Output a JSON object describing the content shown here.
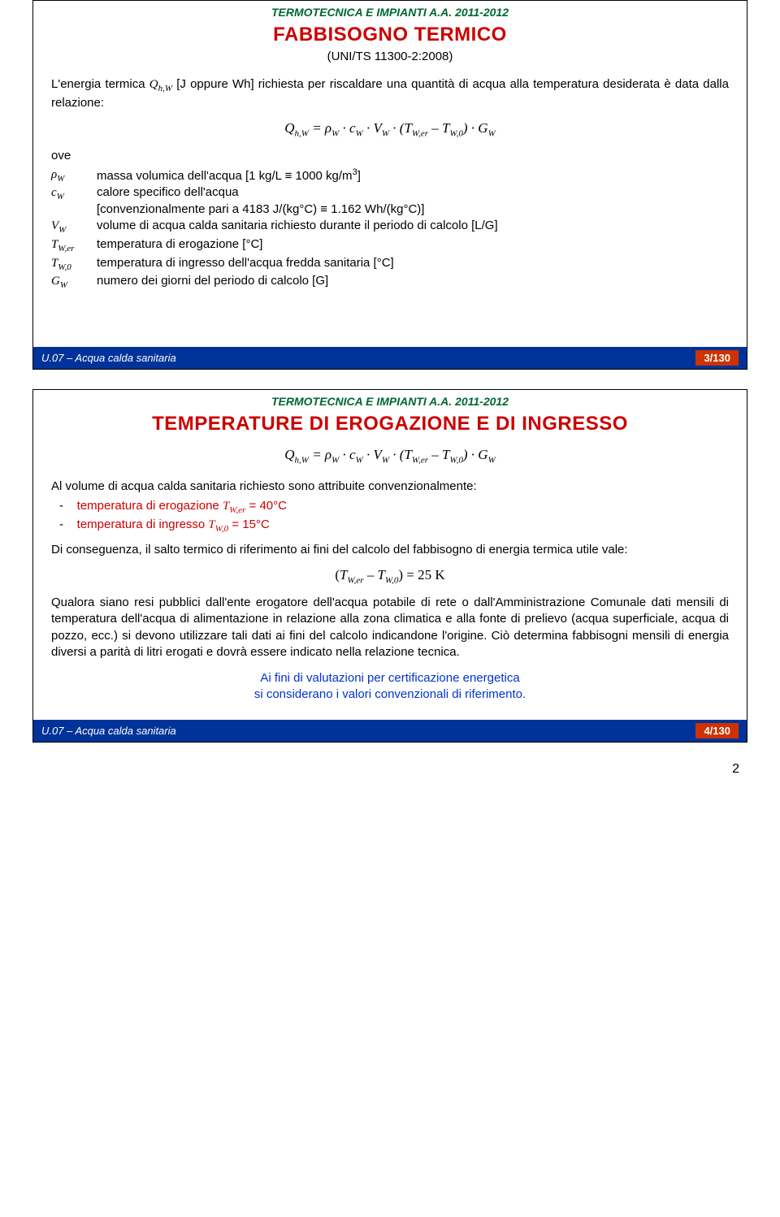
{
  "course_tag": "TERMOTECNICA E IMPIANTI A.A. 2011-2012",
  "slide1": {
    "title": "FABBISOGNO TERMICO",
    "subtitle": "(UNI/TS 11300-2:2008)",
    "intro_a": "L'energia termica ",
    "intro_sym": "Q",
    "intro_sub": "h,W",
    "intro_b": " [J oppure Wh] richiesta per riscaldare una quantità di acqua alla temperatura desiderata è data dalla relazione:",
    "ove": "ove",
    "defs": {
      "rho_sym": "ρ",
      "rho_sub": "W",
      "rho_txt": "massa volumica dell'acqua [1 kg/L ≡ 1000 kg/m",
      "rho_sup": "3",
      "rho_end": "]",
      "c_sym": "c",
      "c_sub": "W",
      "c_line1": "calore specifico dell'acqua",
      "c_line2": "[convenzionalmente pari a 4183 J/(kg°C) ≡ 1.162 Wh/(kg°C)]",
      "v_sym": "V",
      "v_sub": "W",
      "v_txt": "volume di acqua calda sanitaria richiesto durante il periodo di calcolo [L/G]",
      "ter_sym": "T",
      "ter_sub": "W,er",
      "ter_txt": "temperatura di erogazione [°C]",
      "t0_sym": "T",
      "t0_sub": "W,0",
      "t0_txt": "temperatura di ingresso dell'acqua fredda sanitaria [°C]",
      "g_sym": "G",
      "g_sub": "W",
      "g_txt": "numero dei giorni del periodo di calcolo [G]"
    },
    "footer_lesson": "U.07 – Acqua calda sanitaria",
    "footer_page": "3/130"
  },
  "slide2": {
    "title": "TEMPERATURE DI EROGAZIONE E DI INGRESSO",
    "p1": "Al volume di acqua calda sanitaria richiesto sono attribuite convenzionalmente:",
    "b1_lead": "temperatura di erogazione ",
    "b1_sym": "T",
    "b1_sub": "W,er",
    "b1_eq": " = 40°C",
    "b2_lead": "temperatura di ingresso ",
    "b2_sym": "T",
    "b2_sub": "W,0",
    "b2_eq": " = 15°C",
    "p2": "Di conseguenza, il salto termico di riferimento ai fini del calcolo del fabbisogno di energia termica utile vale:",
    "delta_open": "(",
    "delta_a": "T",
    "delta_asub": "W,er",
    "delta_dash": " – ",
    "delta_b": "T",
    "delta_bsub": "W,0",
    "delta_close": ") = 25 K",
    "p3": "Qualora siano resi pubblici dall'ente erogatore dell'acqua potabile di rete o dall'Amministrazione Comunale dati mensili di temperatura dell'acqua di alimentazione in relazione alla zona climatica e alla fonte di prelievo (acqua superficiale, acqua di pozzo, ecc.) si devono utilizzare tali dati ai fini del calcolo indicandone l'origine. Ciò determina fabbisogni mensili di energia diversi a parità di litri erogati e dovrà essere indicato nella relazione tecnica.",
    "blue1": "Ai fini di valutazioni per certificazione energetica",
    "blue2": "si considerano i valori convenzionali di riferimento.",
    "footer_lesson": "U.07 – Acqua calda sanitaria",
    "footer_page": "4/130"
  },
  "page_number": "2"
}
